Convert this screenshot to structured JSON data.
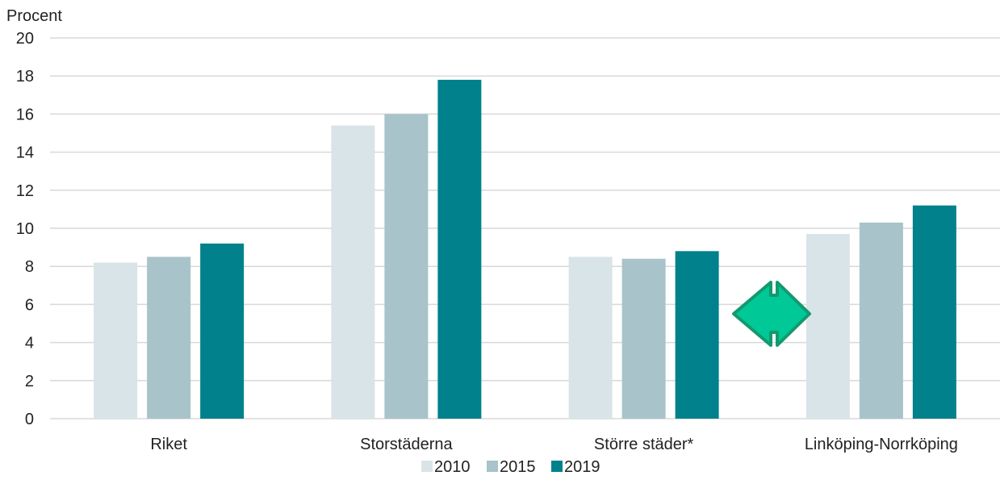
{
  "chart_data": {
    "type": "bar",
    "title": "",
    "ylabel": "Procent",
    "xlabel": "",
    "ylim": [
      0,
      20
    ],
    "yticks": [
      0,
      2,
      4,
      6,
      8,
      10,
      12,
      14,
      16,
      18,
      20
    ],
    "grid": true,
    "legend_position": "bottom",
    "categories": [
      "Riket",
      "Storstäderna",
      "Större städer*",
      "Linköping-Norrköping"
    ],
    "series": [
      {
        "name": "2010",
        "color": "#d9e4e8",
        "values": [
          8.2,
          15.4,
          8.5,
          9.7
        ]
      },
      {
        "name": "2015",
        "color": "#a8c3c9",
        "values": [
          8.5,
          16.0,
          8.4,
          10.3
        ]
      },
      {
        "name": "2019",
        "color": "#00818b",
        "values": [
          9.2,
          17.8,
          8.8,
          11.2
        ]
      }
    ],
    "annotation": {
      "icon": "left-right-arrow-icon",
      "color": "#00c896",
      "between": [
        "Större städer*",
        "Linköping-Norrköping"
      ]
    }
  }
}
